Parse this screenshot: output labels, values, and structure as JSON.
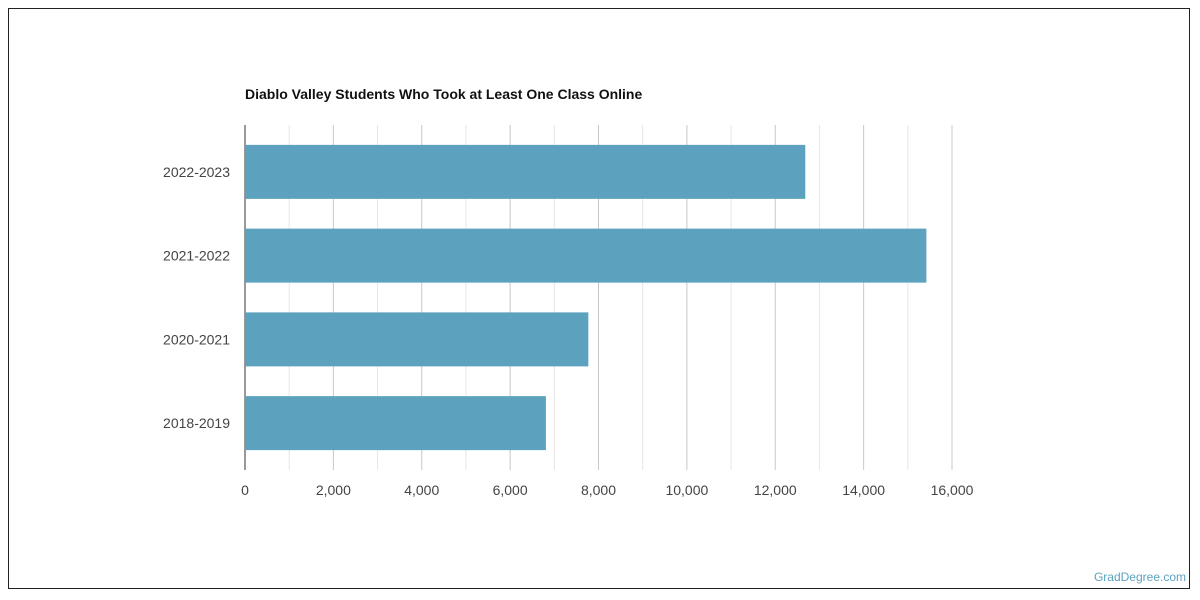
{
  "chart_data": {
    "type": "bar",
    "orientation": "horizontal",
    "title": "Diablo Valley Students Who Took at Least One Class Online",
    "categories": [
      "2022-2023",
      "2021-2022",
      "2020-2021",
      "2018-2019"
    ],
    "values": [
      12680,
      15420,
      7770,
      6810
    ],
    "xlim": [
      0,
      16000
    ],
    "xticks": [
      0,
      2000,
      4000,
      6000,
      8000,
      10000,
      12000,
      14000,
      16000
    ],
    "xtick_labels": [
      "0",
      "2,000",
      "4,000",
      "6,000",
      "8,000",
      "10,000",
      "12,000",
      "14,000",
      "16,000"
    ],
    "grid": true,
    "bar_color": "#5ca2bf",
    "xlabel": "",
    "ylabel": ""
  },
  "credit": "GradDegree.com"
}
